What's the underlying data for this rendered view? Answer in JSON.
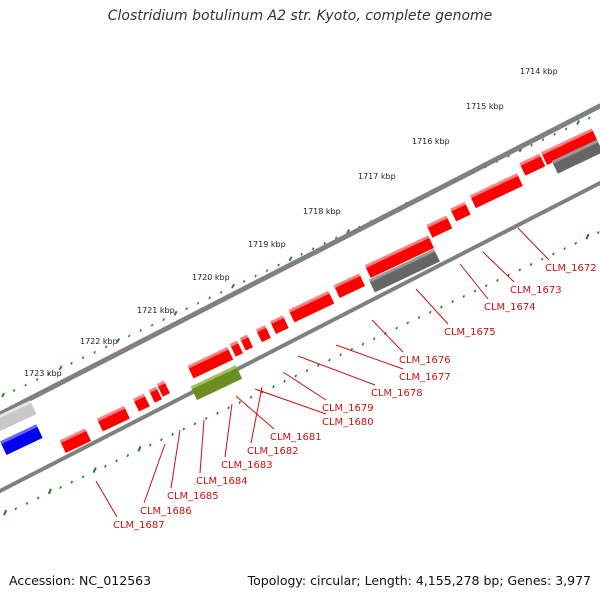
{
  "title": "Clostridium botulinum A2 str. Kyoto, complete genome",
  "footer": {
    "accession": "Accession: NC_012563",
    "topology": "Topology: circular; Length: 4,155,278 bp; Genes: 3,977"
  },
  "colors": {
    "backbone": "#808080",
    "tick_dot": "#2a8a2a",
    "tick_dash": "#1d7a1d",
    "cds": "#ff0000",
    "gene_label": "#cc1111",
    "gray_feature": "#666666",
    "light_gray_feature": "#c8c8c8",
    "blue_feature": "#0000ee",
    "olive_feature": "#6b8e23"
  },
  "kbp_labels": [
    "1714 kbp",
    "1715 kbp",
    "1716 kbp",
    "1717 kbp",
    "1718 kbp",
    "1719 kbp",
    "1720 kbp",
    "1721 kbp",
    "1722 kbp",
    "1723 kbp"
  ],
  "gene_labels": [
    "CLM_1672",
    "CLM_1673",
    "CLM_1674",
    "CLM_1675",
    "CLM_1676",
    "CLM_1677",
    "CLM_1678",
    "CLM_1679",
    "CLM_1680",
    "CLM_1681",
    "CLM_1682",
    "CLM_1683",
    "CLM_1684",
    "CLM_1685",
    "CLM_1686",
    "CLM_1687"
  ]
}
